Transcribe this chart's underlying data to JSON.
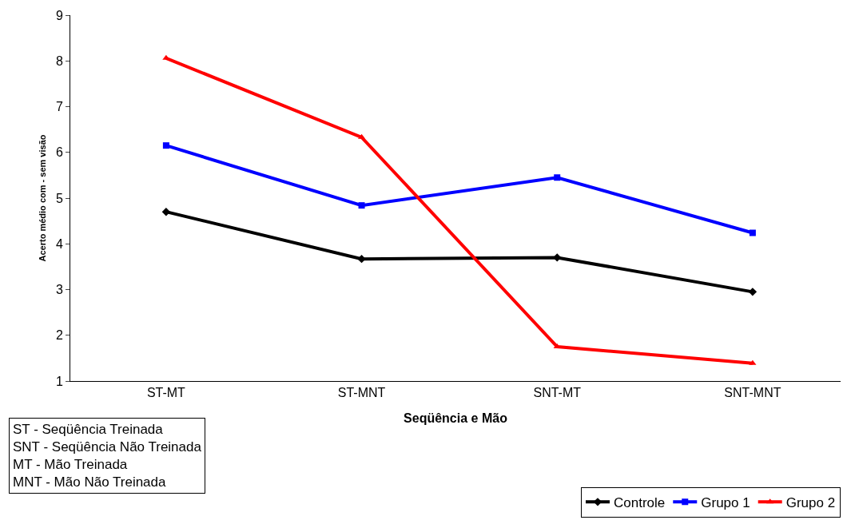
{
  "chart_data": {
    "type": "line",
    "xlabel": "Seqüência e Mão",
    "ylabel": "Acerto médio com - sem visão",
    "categories": [
      "ST-MT",
      "ST-MNT",
      "SNT-MT",
      "SNT-MNT"
    ],
    "series": [
      {
        "name": "Controle",
        "color": "#000000",
        "marker": "diamond",
        "values": [
          4.7,
          3.67,
          3.7,
          2.95
        ]
      },
      {
        "name": "Grupo 1",
        "color": "#0000ff",
        "marker": "square",
        "values": [
          6.15,
          4.84,
          5.45,
          4.24
        ]
      },
      {
        "name": "Grupo 2",
        "color": "#ff0000",
        "marker": "triangle",
        "values": [
          8.06,
          6.33,
          1.75,
          1.39
        ]
      }
    ],
    "ylim": [
      1,
      9
    ],
    "yticks": [
      1,
      2,
      3,
      4,
      5,
      6,
      7,
      8,
      9
    ],
    "legend": "bottom right",
    "line_style": "solid",
    "annotations": [
      "ST - Seqüência Treinada\nSNT - Seqüência Não Treinada\nMT - Mão Treinada\nMNT - Mão Não Treinada"
    ]
  }
}
